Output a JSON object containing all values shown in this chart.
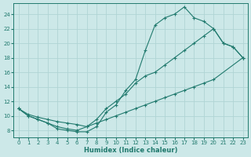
{
  "xlabel": "Humidex (Indice chaleur)",
  "xlim": [
    -0.5,
    23.5
  ],
  "ylim": [
    7,
    25.5
  ],
  "yticks": [
    8,
    10,
    12,
    14,
    16,
    18,
    20,
    22,
    24
  ],
  "xticks": [
    0,
    1,
    2,
    3,
    4,
    5,
    6,
    7,
    8,
    9,
    10,
    11,
    12,
    13,
    14,
    15,
    16,
    17,
    18,
    19,
    20,
    21,
    22,
    23
  ],
  "bg_color": "#cce8e8",
  "grid_color": "#b0d4d4",
  "line_color": "#217a6e",
  "line1_x": [
    0,
    1,
    2,
    3,
    4,
    5,
    6,
    7,
    8,
    9,
    10,
    11,
    12,
    13,
    14,
    15,
    16,
    17,
    18,
    19,
    20,
    21,
    22,
    23
  ],
  "line1_y": [
    11,
    10,
    9.5,
    9,
    8.2,
    8,
    7.8,
    7.8,
    8.5,
    10.5,
    11.5,
    13.5,
    15,
    19,
    22.5,
    23.5,
    24,
    25,
    23.5,
    23,
    22,
    20,
    19.5,
    18
  ],
  "line2_x": [
    0,
    1,
    2,
    3,
    4,
    5,
    6,
    7,
    8,
    9,
    10,
    11,
    12,
    13,
    14,
    15,
    16,
    17,
    18,
    19,
    20,
    21,
    22,
    23
  ],
  "line2_y": [
    11,
    10,
    9.5,
    9,
    8.5,
    8.2,
    8,
    8.5,
    9.5,
    11,
    12,
    13,
    14.5,
    15.5,
    16,
    17,
    18,
    19,
    20,
    21,
    22,
    20,
    19.5,
    18
  ],
  "line3_x": [
    0,
    1,
    2,
    3,
    4,
    5,
    6,
    7,
    8,
    9,
    10,
    11,
    12,
    13,
    14,
    15,
    16,
    17,
    18,
    19,
    20,
    23
  ],
  "line3_y": [
    11,
    10.2,
    9.8,
    9.5,
    9.2,
    9.0,
    8.8,
    8.5,
    9,
    9.5,
    10,
    10.5,
    11,
    11.5,
    12,
    12.5,
    13,
    13.5,
    14,
    14.5,
    15,
    18
  ]
}
